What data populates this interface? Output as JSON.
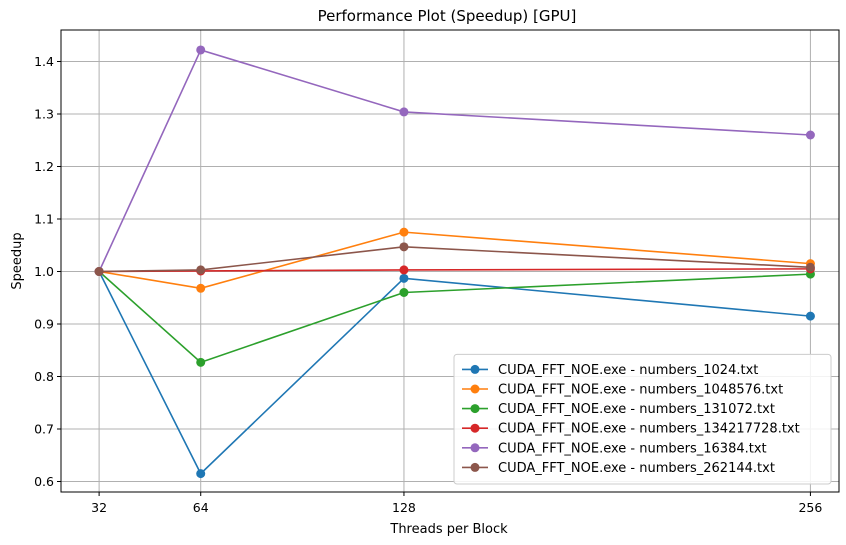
{
  "chart_data": {
    "type": "line",
    "title": "Performance Plot (Speedup) [GPU]",
    "xlabel": "Threads per Block",
    "ylabel": "Speedup",
    "x": [
      32,
      64,
      128,
      256
    ],
    "x_tick_labels": [
      "32",
      "64",
      "128",
      "256"
    ],
    "xlim": [
      20,
      265
    ],
    "ylim": [
      0.58,
      1.46
    ],
    "y_ticks": [
      0.6,
      0.7,
      0.8,
      0.9,
      1.0,
      1.1,
      1.2,
      1.3,
      1.4
    ],
    "y_tick_labels": [
      "0.6",
      "0.7",
      "0.8",
      "0.9",
      "1.0",
      "1.1",
      "1.2",
      "1.3",
      "1.4"
    ],
    "grid": true,
    "legend_position": "lower-right",
    "marker": "circle",
    "series": [
      {
        "name": "CUDA_FFT_NOE.exe - numbers_1024.txt",
        "color": "#1f77b4",
        "values": [
          1.0,
          0.615,
          0.987,
          0.915
        ]
      },
      {
        "name": "CUDA_FFT_NOE.exe - numbers_1048576.txt",
        "color": "#ff7f0e",
        "values": [
          1.0,
          0.968,
          1.075,
          1.015
        ]
      },
      {
        "name": "CUDA_FFT_NOE.exe - numbers_131072.txt",
        "color": "#2ca02c",
        "values": [
          1.0,
          0.827,
          0.96,
          0.995
        ]
      },
      {
        "name": "CUDA_FFT_NOE.exe - numbers_134217728.txt",
        "color": "#d62728",
        "values": [
          1.0,
          1.001,
          1.003,
          1.005
        ]
      },
      {
        "name": "CUDA_FFT_NOE.exe - numbers_16384.txt",
        "color": "#9467bd",
        "values": [
          1.0,
          1.422,
          1.304,
          1.26
        ]
      },
      {
        "name": "CUDA_FFT_NOE.exe - numbers_262144.txt",
        "color": "#8c564b",
        "values": [
          1.0,
          1.003,
          1.047,
          1.008
        ]
      }
    ]
  }
}
